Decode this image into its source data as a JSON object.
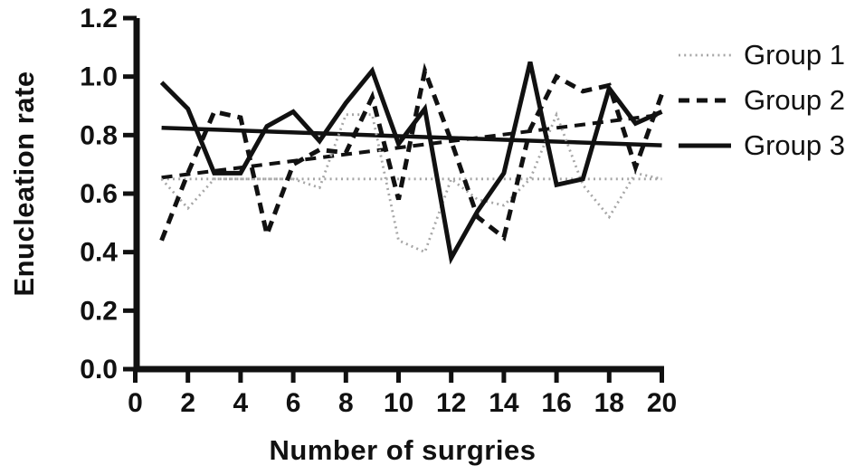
{
  "figure": {
    "background_color": "#ffffff",
    "ink_color": "#111111",
    "group1_color": "#a6a6a6"
  },
  "chart_data": {
    "type": "line",
    "xlabel": "Number of surgries",
    "ylabel": "Enucleation rate",
    "xlim": [
      0,
      20
    ],
    "ylim": [
      0.0,
      1.2
    ],
    "x_tick_labels": [
      "0",
      "2",
      "4",
      "6",
      "8",
      "10",
      "12",
      "14",
      "16",
      "18",
      "20"
    ],
    "x_tick_values": [
      0,
      2,
      4,
      6,
      8,
      10,
      12,
      14,
      16,
      18,
      20
    ],
    "y_tick_labels": [
      "0.0",
      "0.2",
      "0.4",
      "0.6",
      "0.8",
      "1.0",
      "1.2"
    ],
    "y_tick_values": [
      0.0,
      0.2,
      0.4,
      0.6,
      0.8,
      1.0,
      1.2
    ],
    "grid": false,
    "legend_position": "top-right",
    "x": [
      1,
      2,
      3,
      4,
      5,
      6,
      7,
      8,
      9,
      10,
      11,
      12,
      13,
      14,
      15,
      16,
      17,
      18,
      19,
      20
    ],
    "series": [
      {
        "name": "Group 1",
        "style": "dotted",
        "color": "#a6a6a6",
        "values": [
          0.65,
          0.55,
          0.65,
          0.65,
          0.65,
          0.65,
          0.62,
          0.87,
          0.87,
          0.44,
          0.4,
          0.65,
          0.58,
          0.56,
          0.65,
          0.87,
          0.63,
          0.52,
          0.67,
          0.65
        ]
      },
      {
        "name": "Group 2",
        "style": "dashed",
        "color": "#111111",
        "values": [
          0.44,
          0.67,
          0.88,
          0.86,
          0.46,
          0.7,
          0.75,
          0.74,
          0.93,
          0.58,
          1.02,
          0.78,
          0.52,
          0.45,
          0.82,
          1.0,
          0.95,
          0.97,
          0.69,
          0.94
        ]
      },
      {
        "name": "Group 3",
        "style": "solid",
        "color": "#111111",
        "values": [
          0.98,
          0.89,
          0.67,
          0.67,
          0.83,
          0.88,
          0.78,
          0.91,
          1.02,
          0.77,
          0.89,
          0.38,
          0.54,
          0.67,
          1.05,
          0.63,
          0.65,
          0.96,
          0.84,
          0.88
        ]
      }
    ],
    "trend_lines": [
      {
        "series": "Group 1",
        "style": "dotted",
        "color": "#a6a6a6",
        "x_start": 1,
        "y_start": 0.65,
        "x_end": 20,
        "y_end": 0.65
      },
      {
        "series": "Group 2",
        "style": "dashed",
        "color": "#111111",
        "x_start": 1,
        "y_start": 0.655,
        "x_end": 20,
        "y_end": 0.87
      },
      {
        "series": "Group 3",
        "style": "solid",
        "color": "#111111",
        "x_start": 1,
        "y_start": 0.825,
        "x_end": 20,
        "y_end": 0.765
      }
    ],
    "legend": [
      "Group 1",
      "Group 2",
      "Group 3"
    ]
  }
}
